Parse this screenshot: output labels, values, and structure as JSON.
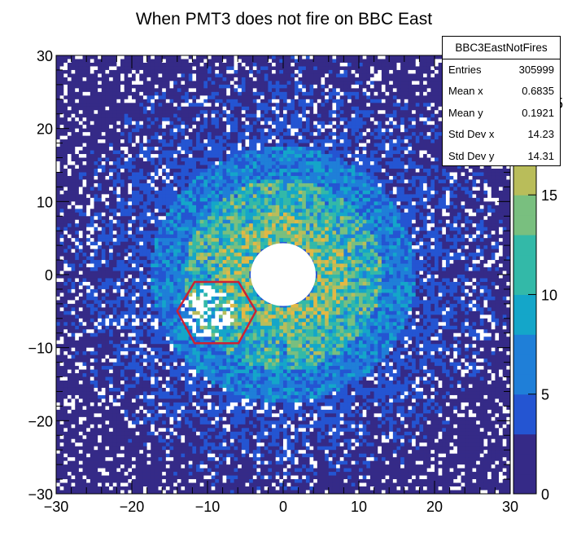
{
  "chart_data": {
    "type": "heatmap",
    "title": "When PMT3 does not fire on BBC East",
    "xlabel": "",
    "ylabel": "",
    "xlim": [
      -30,
      30
    ],
    "ylim": [
      -30,
      30
    ],
    "x_ticks": [
      "−30",
      "−20",
      "−10",
      "0",
      "10",
      "20",
      "30"
    ],
    "y_ticks": [
      "−30",
      "−20",
      "−10",
      "0",
      "10",
      "20",
      "30"
    ],
    "color_scale": {
      "min": 0,
      "max": 22,
      "ticks": [
        "0",
        "5",
        "10",
        "15",
        "20"
      ],
      "partially_hidden_label": "5",
      "palette": [
        "#352a87",
        "#2455d2",
        "#1f7fd8",
        "#14a6c9",
        "#33b9a8",
        "#79bf7f",
        "#b9bd5a",
        "#e3b844",
        "#f9d23c"
      ]
    },
    "description_features": {
      "inner_hole_radius": 4.3,
      "ring_boundaries": [
        4.3,
        8.5,
        13.0,
        17.5
      ],
      "missing_pmt_region_center": [
        -10,
        -5
      ],
      "missing_pmt_region_radius": 4.7
    },
    "stats_box": {
      "name": "BBC3EastNotFires",
      "entries_label": "Entries",
      "entries": "305999",
      "mean_x_label": "Mean x",
      "mean_x": "0.6835",
      "mean_y_label": "Mean y",
      "mean_y": "0.1921",
      "std_x_label": "Std Dev x",
      "std_x": "14.23",
      "std_y_label": "Std Dev y",
      "std_y": "14.31"
    },
    "hexagon": {
      "color": "#cc2233",
      "vertices": [
        [
          -14,
          -5
        ],
        [
          -11.7,
          -1
        ],
        [
          -5.9,
          -1
        ],
        [
          -3.6,
          -5
        ],
        [
          -5.9,
          -9.4
        ],
        [
          -11.7,
          -9.4
        ]
      ]
    }
  }
}
